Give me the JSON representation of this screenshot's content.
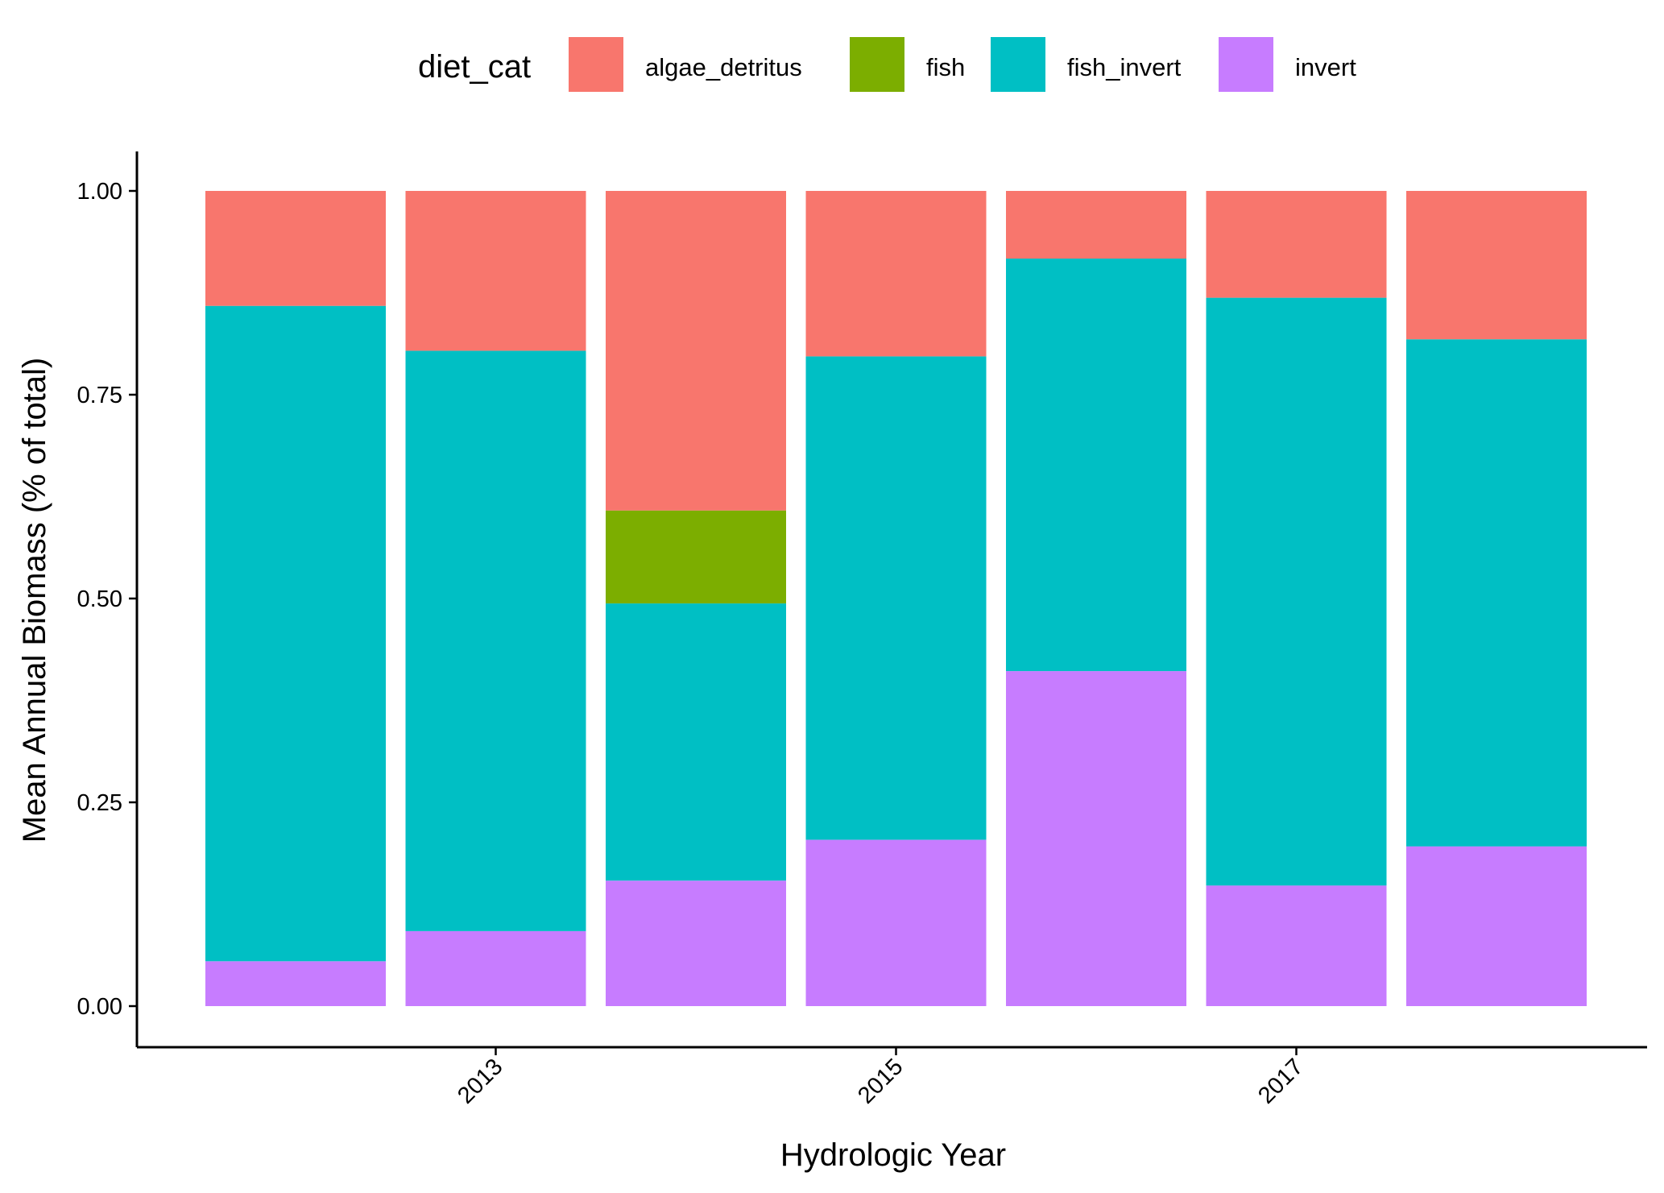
{
  "chart_data": {
    "type": "bar",
    "stacked": true,
    "xlabel": "Hydrologic Year",
    "ylabel": "Mean Annual Biomass (% of total)",
    "x": [
      2012,
      2013,
      2014,
      2015,
      2016,
      2017,
      2018
    ],
    "x_tick_labels": [
      "2013",
      "2015",
      "2017"
    ],
    "x_tick_values": [
      2013,
      2015,
      2017
    ],
    "y_tick_labels": [
      "0.00",
      "0.25",
      "0.50",
      "0.75",
      "1.00"
    ],
    "y_tick_values": [
      0,
      0.25,
      0.5,
      0.75,
      1.0
    ],
    "ylim": [
      -0.05,
      1.05
    ],
    "grid": false,
    "legend": {
      "title": "diet_cat",
      "position": "top"
    },
    "series": [
      {
        "name": "invert",
        "color": "#C77CFF",
        "values": [
          0.055,
          0.092,
          0.154,
          0.204,
          0.411,
          0.148,
          0.196
        ]
      },
      {
        "name": "fish_invert",
        "color": "#00BFC4",
        "values": [
          0.804,
          0.712,
          0.34,
          0.593,
          0.506,
          0.721,
          0.622
        ]
      },
      {
        "name": "fish",
        "color": "#7CAE00",
        "values": [
          0.0,
          0.0,
          0.114,
          0.0,
          0.0,
          0.0,
          0.0
        ]
      },
      {
        "name": "algae_detritus",
        "color": "#F8766D",
        "values": [
          0.141,
          0.196,
          0.392,
          0.203,
          0.083,
          0.131,
          0.182
        ]
      }
    ],
    "legend_order": [
      "algae_detritus",
      "fish",
      "fish_invert",
      "invert"
    ]
  }
}
